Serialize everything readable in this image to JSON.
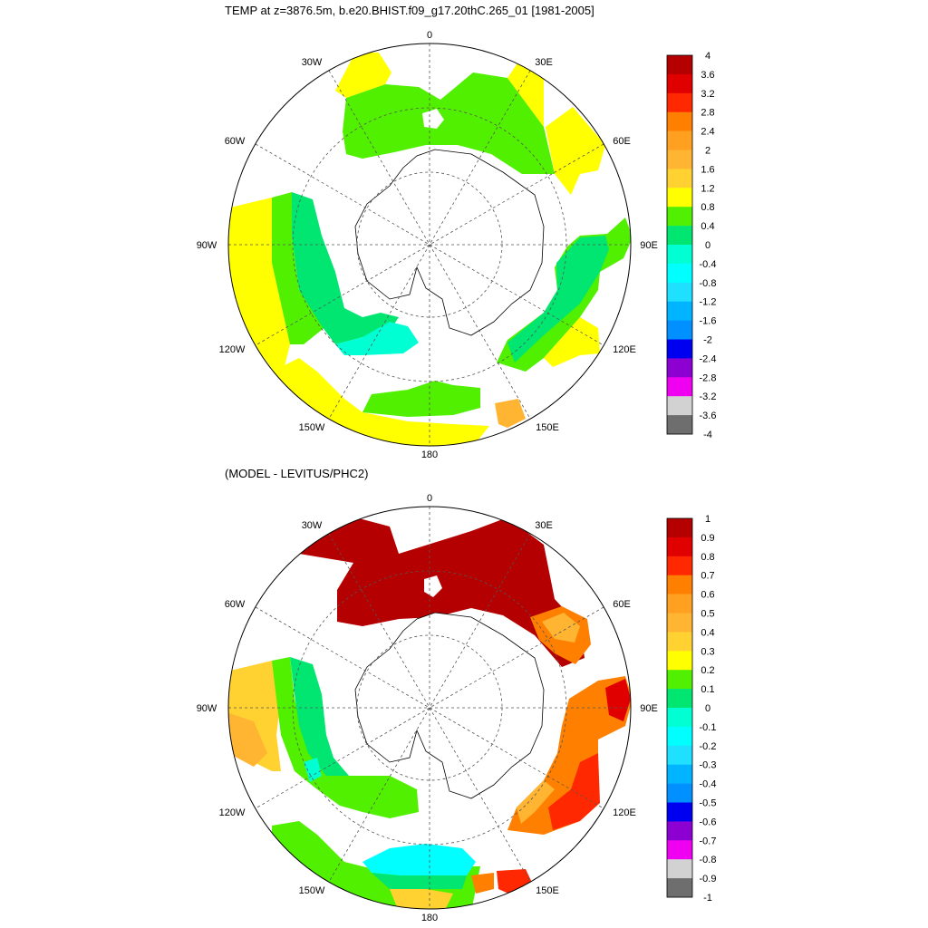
{
  "top_panel": {
    "title": "TEMP at z=3876.5m, b.e20.BHIST.f09_g17.20thC.265_01 [1981-2005]",
    "longitude_labels": [
      "0",
      "30E",
      "60E",
      "90E",
      "120E",
      "150E",
      "180",
      "150W",
      "120W",
      "90W",
      "60W",
      "30W"
    ],
    "colorbar": {
      "labels": [
        "4",
        "3.6",
        "3.2",
        "2.8",
        "2.4",
        "2",
        "1.6",
        "1.2",
        "0.8",
        "0.4",
        "0",
        "-0.4",
        "-0.8",
        "-1.2",
        "-1.6",
        "-2",
        "-2.4",
        "-2.8",
        "-3.2",
        "-3.6",
        "-4"
      ],
      "colors": [
        "#b40000",
        "#e00000",
        "#ff2800",
        "#ff8000",
        "#ffa020",
        "#ffb432",
        "#ffd232",
        "#ffff00",
        "#50f000",
        "#00e670",
        "#00ffd2",
        "#00ffff",
        "#20e0ff",
        "#00b4ff",
        "#0090ff",
        "#0000f0",
        "#8c00d2",
        "#f000f0",
        "#d2d2d2",
        "#6e6e6e"
      ]
    }
  },
  "bottom_panel": {
    "title": "(MODEL - LEVITUS/PHC2)",
    "longitude_labels": [
      "0",
      "30E",
      "60E",
      "90E",
      "120E",
      "150E",
      "180",
      "150W",
      "120W",
      "90W",
      "60W",
      "30W"
    ],
    "colorbar": {
      "labels": [
        "1",
        "0.9",
        "0.8",
        "0.7",
        "0.6",
        "0.5",
        "0.4",
        "0.3",
        "0.2",
        "0.1",
        "0",
        "-0.1",
        "-0.2",
        "-0.3",
        "-0.4",
        "-0.5",
        "-0.6",
        "-0.7",
        "-0.8",
        "-0.9",
        "-1"
      ],
      "colors": [
        "#b40000",
        "#e00000",
        "#ff2800",
        "#ff8000",
        "#ffa020",
        "#ffb432",
        "#ffd232",
        "#ffff00",
        "#50f000",
        "#00e670",
        "#00ffd2",
        "#00ffff",
        "#20e0ff",
        "#00b4ff",
        "#0090ff",
        "#0000f0",
        "#8c00d2",
        "#f000f0",
        "#d2d2d2",
        "#6e6e6e"
      ]
    }
  },
  "colors": {
    "land": "#ffffff",
    "grid": "#555555",
    "outline": "#000000",
    "warm_dark": "#b40000",
    "orange": "#ff8000",
    "yellow": "#ffff00",
    "green": "#50f000",
    "sea_green": "#00e670",
    "cyan": "#00ffd2",
    "light_orange": "#ffb432",
    "gold": "#ffd232",
    "red": "#ff2800"
  }
}
